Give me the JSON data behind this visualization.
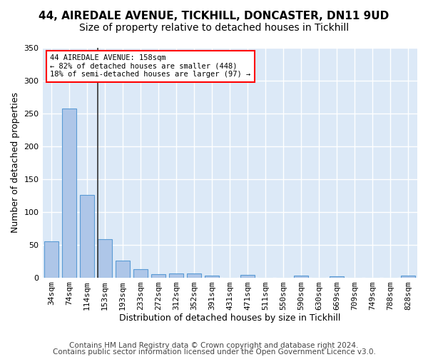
{
  "title1": "44, AIREDALE AVENUE, TICKHILL, DONCASTER, DN11 9UD",
  "title2": "Size of property relative to detached houses in Tickhill",
  "xlabel": "Distribution of detached houses by size in Tickhill",
  "ylabel": "Number of detached properties",
  "categories": [
    "34sqm",
    "74sqm",
    "114sqm",
    "153sqm",
    "193sqm",
    "233sqm",
    "272sqm",
    "312sqm",
    "352sqm",
    "391sqm",
    "431sqm",
    "471sqm",
    "511sqm",
    "550sqm",
    "590sqm",
    "630sqm",
    "669sqm",
    "709sqm",
    "749sqm",
    "788sqm",
    "828sqm"
  ],
  "values": [
    55,
    257,
    126,
    58,
    26,
    13,
    5,
    6,
    6,
    3,
    0,
    4,
    0,
    0,
    3,
    0,
    2,
    0,
    0,
    0,
    3
  ],
  "bar_color": "#aec6e8",
  "bar_edge_color": "#5a9bd5",
  "vline_x_index": 3,
  "annotation_text1": "44 AIREDALE AVENUE: 158sqm",
  "annotation_text2": "← 82% of detached houses are smaller (448)",
  "annotation_text3": "18% of semi-detached houses are larger (97) →",
  "annotation_box_color": "white",
  "annotation_box_edge_color": "red",
  "vline_color": "#333333",
  "ylim": [
    0,
    340
  ],
  "yticks": [
    0,
    50,
    100,
    150,
    200,
    250,
    300,
    350
  ],
  "background_color": "#dce9f7",
  "grid_color": "white",
  "footnote1": "Contains HM Land Registry data © Crown copyright and database right 2024.",
  "footnote2": "Contains public sector information licensed under the Open Government Licence v3.0.",
  "title1_fontsize": 11,
  "title2_fontsize": 10,
  "xlabel_fontsize": 9,
  "ylabel_fontsize": 9,
  "tick_fontsize": 8,
  "footnote_fontsize": 7.5
}
